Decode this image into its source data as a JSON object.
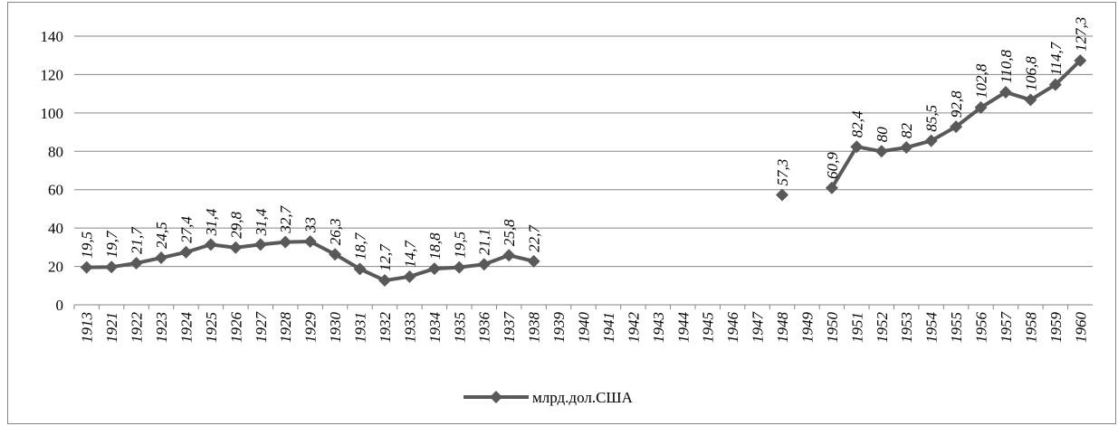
{
  "chart_data": {
    "type": "line",
    "categories": [
      "1913",
      "1921",
      "1922",
      "1923",
      "1924",
      "1925",
      "1926",
      "1927",
      "1928",
      "1929",
      "1930",
      "1931",
      "1932",
      "1933",
      "1934",
      "1935",
      "1936",
      "1937",
      "1938",
      "1939",
      "1940",
      "1941",
      "1942",
      "1943",
      "1944",
      "1945",
      "1946",
      "1947",
      "1948",
      "1949",
      "1950",
      "1951",
      "1952",
      "1953",
      "1954",
      "1955",
      "1956",
      "1957",
      "1958",
      "1959",
      "1960"
    ],
    "series": [
      {
        "name": "млрд.дол.США",
        "color": "#595959",
        "values": [
          19.5,
          19.7,
          21.7,
          24.5,
          27.4,
          31.4,
          29.8,
          31.4,
          32.7,
          33,
          26.3,
          18.7,
          12.7,
          14.7,
          18.8,
          19.5,
          21.1,
          25.8,
          22.7,
          null,
          null,
          null,
          null,
          null,
          null,
          null,
          null,
          null,
          57.3,
          null,
          60.9,
          82.4,
          80,
          82,
          85.5,
          92.8,
          102.8,
          110.8,
          106.8,
          114.7,
          127.3
        ],
        "value_labels": [
          "19,5",
          "19,7",
          "21,7",
          "24,5",
          "27,4",
          "31,4",
          "29,8",
          "31,4",
          "32,7",
          "33",
          "26,3",
          "18,7",
          "12,7",
          "14,7",
          "18,8",
          "19,5",
          "21,1",
          "25,8",
          "22,7",
          null,
          null,
          null,
          null,
          null,
          null,
          null,
          null,
          null,
          "57,3",
          null,
          "60,9",
          "82,4",
          "80",
          "82",
          "85,5",
          "92,8",
          "102,8",
          "110,8",
          "106,8",
          "114,7",
          "127,3"
        ]
      }
    ],
    "ylim": [
      0,
      140
    ],
    "yticks": [
      0,
      20,
      40,
      60,
      80,
      100,
      120,
      140
    ],
    "grid": true,
    "legend": "bottom"
  }
}
